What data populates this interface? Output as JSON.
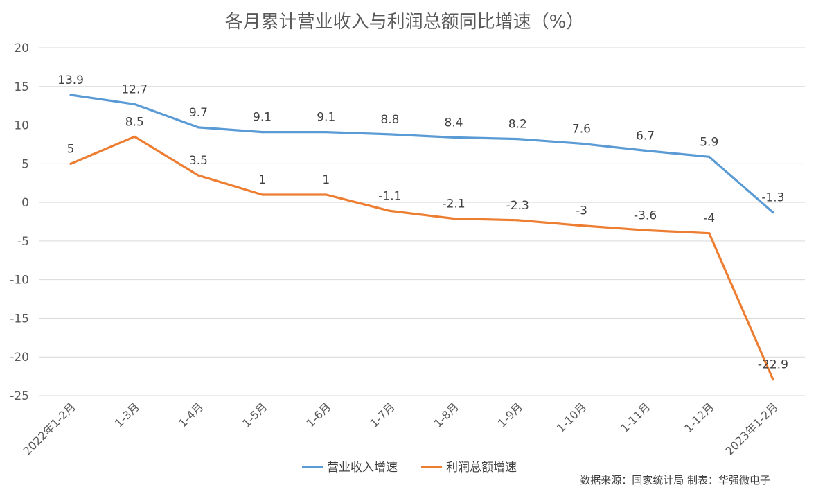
{
  "chart_data": {
    "type": "line",
    "title": "各月累计营业收入与利润总额同比增速（%）",
    "xlabel": "",
    "ylabel": "",
    "categories": [
      "2022年1-2月",
      "1-3月",
      "1-4月",
      "1-5月",
      "1-6月",
      "1-7月",
      "1-8月",
      "1-9月",
      "1-10月",
      "1-11月",
      "1-12月",
      "2023年1-2月"
    ],
    "ylim": [
      -25,
      20
    ],
    "yticks": [
      20,
      15,
      10,
      5,
      0,
      -5,
      -10,
      -15,
      -20,
      -25
    ],
    "grid": true,
    "legend_position": "bottom",
    "series": [
      {
        "name": "营业收入增速",
        "color": "#5b9bd5",
        "values": [
          13.9,
          12.7,
          9.7,
          9.1,
          9.1,
          8.8,
          8.4,
          8.2,
          7.6,
          6.7,
          5.9,
          -1.3
        ],
        "labels": [
          "13.9",
          "12.7",
          "9.7",
          "9.1",
          "9.1",
          "8.8",
          "8.4",
          "8.2",
          "7.6",
          "6.7",
          "5.9",
          "-1.3"
        ]
      },
      {
        "name": "利润总额增速",
        "color": "#ed7d31",
        "values": [
          5,
          8.5,
          3.5,
          1,
          1,
          -1.1,
          -2.1,
          -2.3,
          -3,
          -3.6,
          -4,
          -22.9
        ],
        "labels": [
          "5",
          "8.5",
          "3.5",
          "1",
          "1",
          "-1.1",
          "-2.1",
          "-2.3",
          "-3",
          "-3.6",
          "-4",
          "-22.9"
        ]
      }
    ],
    "source_note": "数据来源：国家统计局  制表：华强微电子"
  }
}
